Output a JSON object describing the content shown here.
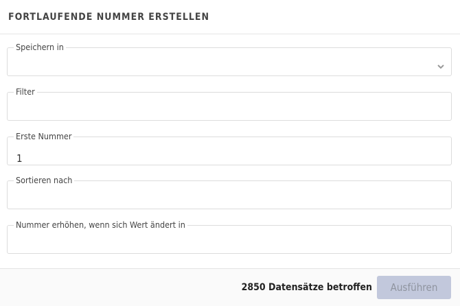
{
  "header": {
    "title": "FORTLAUFENDE NUMMER ERSTELLEN"
  },
  "fields": [
    {
      "label": "Speichern in",
      "value": "",
      "type": "select",
      "icon": "chevron-down-icon"
    },
    {
      "label": "Filter",
      "value": ""
    },
    {
      "label": "Erste Nummer",
      "value": "1"
    },
    {
      "label": "Sortieren nach",
      "value": ""
    },
    {
      "label": "Nummer erhöhen, wenn sich Wert ändert in",
      "value": ""
    }
  ],
  "footer": {
    "count_text": "2850 Datensätze betroffen",
    "run_label": "Ausführen",
    "run_button_color": "#c2c8dc"
  }
}
